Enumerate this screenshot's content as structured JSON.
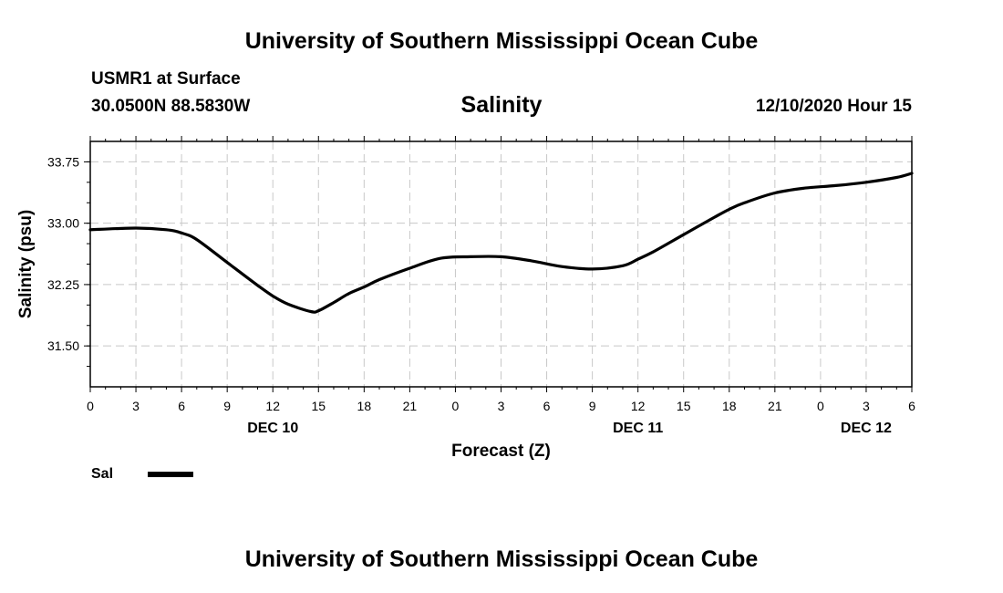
{
  "header": {
    "title": "University of Southern Mississippi Ocean Cube",
    "station": "USMR1 at Surface",
    "coords": "30.0500N 88.5830W",
    "variable": "Salinity",
    "datetime": "12/10/2020 Hour 15"
  },
  "footer": {
    "title": "University of Southern Mississippi Ocean Cube"
  },
  "chart_data": {
    "type": "line",
    "title": "Salinity",
    "xlabel": "Forecast (Z)",
    "ylabel": "Salinity (psu)",
    "x_unit": "hours from DEC 10 00Z",
    "xlim": [
      0,
      54
    ],
    "ylim": [
      31.0,
      34.0
    ],
    "grid": true,
    "x_ticks": [
      {
        "x": 0,
        "label": "0"
      },
      {
        "x": 3,
        "label": "3"
      },
      {
        "x": 6,
        "label": "6"
      },
      {
        "x": 9,
        "label": "9"
      },
      {
        "x": 12,
        "label": "12"
      },
      {
        "x": 15,
        "label": "15"
      },
      {
        "x": 18,
        "label": "18"
      },
      {
        "x": 21,
        "label": "21"
      },
      {
        "x": 24,
        "label": "0"
      },
      {
        "x": 27,
        "label": "3"
      },
      {
        "x": 30,
        "label": "6"
      },
      {
        "x": 33,
        "label": "9"
      },
      {
        "x": 36,
        "label": "12"
      },
      {
        "x": 39,
        "label": "15"
      },
      {
        "x": 42,
        "label": "18"
      },
      {
        "x": 45,
        "label": "21"
      },
      {
        "x": 48,
        "label": "0"
      },
      {
        "x": 51,
        "label": "3"
      },
      {
        "x": 54,
        "label": "6"
      }
    ],
    "date_labels": [
      {
        "x": 12,
        "label": "DEC 10"
      },
      {
        "x": 36,
        "label": "DEC 11"
      },
      {
        "x": 51,
        "label": "DEC 12"
      }
    ],
    "y_ticks": [
      {
        "y": 31.5,
        "label": "31.50"
      },
      {
        "y": 32.25,
        "label": "32.25"
      },
      {
        "y": 33.0,
        "label": "33.00"
      },
      {
        "y": 33.75,
        "label": "33.75"
      }
    ],
    "series": [
      {
        "name": "Sal",
        "color": "#000000",
        "x": [
          0,
          3,
          5,
          6,
          7,
          9,
          11,
          12,
          13,
          14.5,
          15,
          16,
          17,
          18,
          19,
          21,
          23,
          25,
          27,
          29,
          31,
          33,
          35,
          36,
          37,
          39,
          41,
          42,
          43,
          45,
          47,
          49,
          51,
          53,
          54
        ],
        "values": [
          32.92,
          32.94,
          32.92,
          32.88,
          32.8,
          32.52,
          32.24,
          32.11,
          32.01,
          31.92,
          31.93,
          32.03,
          32.14,
          32.22,
          32.31,
          32.45,
          32.57,
          32.59,
          32.59,
          32.54,
          32.47,
          32.44,
          32.48,
          32.56,
          32.65,
          32.86,
          33.07,
          33.17,
          33.25,
          33.37,
          33.43,
          33.46,
          33.5,
          33.56,
          33.61
        ]
      }
    ],
    "legend": [
      {
        "name": "Sal",
        "color": "#000000"
      }
    ],
    "legend_position": "bottom-left"
  }
}
